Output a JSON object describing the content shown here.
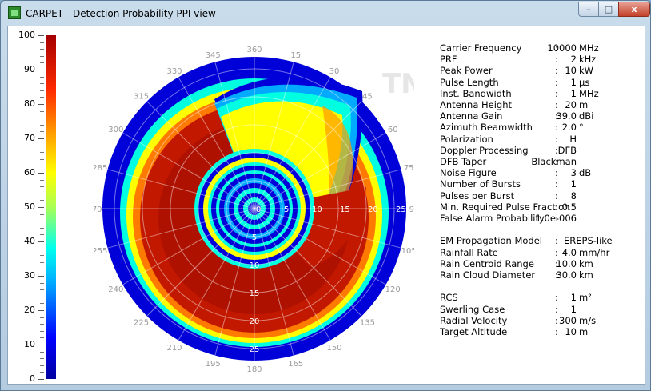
{
  "window": {
    "title": "CARPET - Detection Probability PPI view",
    "minimize_label": "–",
    "maximize_label": "□",
    "close_label": "x"
  },
  "colorbar": {
    "ticks": [
      "100",
      "90",
      "80",
      "70",
      "60",
      "50",
      "40",
      "30",
      "20",
      "10",
      "0"
    ],
    "gradient": [
      "#0000a0",
      "#0000ff",
      "#00aaff",
      "#00ffee",
      "#aaff55",
      "#ffff00",
      "#ff9900",
      "#ff2a00",
      "#a50000"
    ]
  },
  "ppi": {
    "watermark": "TNO",
    "azimuth_labels": [
      "360",
      "15",
      "30",
      "45",
      "60",
      "75",
      "90",
      "105",
      "120",
      "135",
      "150",
      "165",
      "180",
      "195",
      "210",
      "225",
      "240",
      "255",
      "270",
      "285",
      "300",
      "315",
      "330",
      "345"
    ],
    "range_labels": [
      "0",
      "5",
      "10",
      "15",
      "20",
      "25"
    ],
    "colors": {
      "outer": "#0000d8",
      "red": "#c21800",
      "dark": "#a00c00",
      "yellow": "#ffff00",
      "cyan": "#00ffe0"
    }
  },
  "params": [
    {
      "name": "Carrier Frequency",
      "value": "10000",
      "unit": "MHz"
    },
    {
      "name": "PRF",
      "value": "2",
      "unit": "kHz"
    },
    {
      "name": "Peak Power",
      "value": "10",
      "unit": "kW"
    },
    {
      "name": "Pulse Length",
      "value": "1",
      "unit": "µs"
    },
    {
      "name": "Inst. Bandwidth",
      "value": "1",
      "unit": "MHz"
    },
    {
      "name": "Antenna Height",
      "value": "20",
      "unit": "m"
    },
    {
      "name": "Antenna Gain",
      "value": "39.0",
      "unit": "dBi"
    },
    {
      "name": "Azimuth Beamwidth",
      "value": "2.0",
      "unit": "°"
    },
    {
      "name": "Polarization",
      "value": "H",
      "unit": ""
    },
    {
      "name": "Doppler Processing",
      "value": "DFB",
      "unit": ""
    },
    {
      "name": "DFB Taper",
      "value": "Blackman",
      "unit": ""
    },
    {
      "name": "Noise Figure",
      "value": "3",
      "unit": "dB"
    },
    {
      "name": "Number of Bursts",
      "value": "1",
      "unit": ""
    },
    {
      "name": "Pulses per Burst",
      "value": "8",
      "unit": ""
    },
    {
      "name": "Min. Required Pulse Fraction",
      "value": "0.5",
      "unit": ""
    },
    {
      "name": "False Alarm Probability",
      "value": "1.0e-006",
      "unit": ""
    },
    {
      "name": "",
      "value": "",
      "unit": ""
    },
    {
      "name": "EM Propagation Model",
      "value": "EREPS-like",
      "unit": "",
      "left": true
    },
    {
      "name": "Rainfall Rate",
      "value": "4.0",
      "unit": "mm/hr"
    },
    {
      "name": "Rain Centroid Range",
      "value": "10.0",
      "unit": "km"
    },
    {
      "name": "Rain Cloud Diameter",
      "value": "30.0",
      "unit": "km"
    },
    {
      "name": "",
      "value": "",
      "unit": ""
    },
    {
      "name": "RCS",
      "value": "1",
      "unit": "m²"
    },
    {
      "name": "Swerling Case",
      "value": "1",
      "unit": ""
    },
    {
      "name": "Radial Velocity",
      "value": "300",
      "unit": "m/s"
    },
    {
      "name": "Target Altitude",
      "value": "10",
      "unit": "m"
    }
  ]
}
